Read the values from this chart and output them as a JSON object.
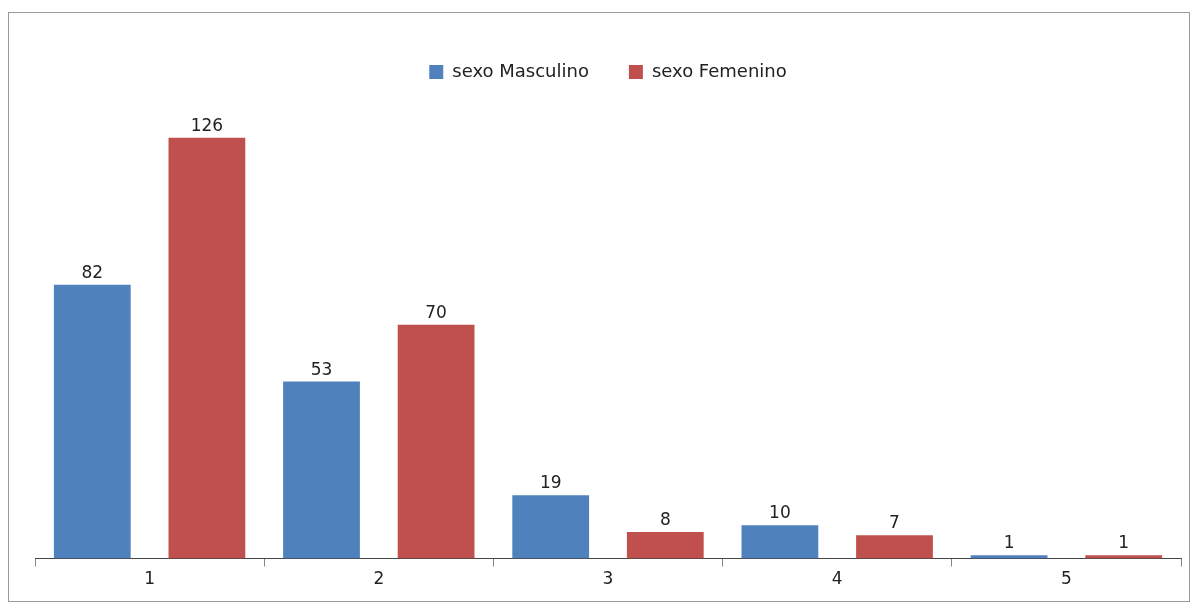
{
  "chart_data": {
    "type": "bar",
    "categories": [
      "1",
      "2",
      "3",
      "4",
      "5"
    ],
    "series": [
      {
        "name": "sexo Masculino",
        "color": "#4f81bd",
        "values": [
          82,
          53,
          19,
          10,
          1
        ]
      },
      {
        "name": "sexo Femenino",
        "color": "#c0504d",
        "values": [
          126,
          70,
          8,
          7,
          1
        ]
      }
    ],
    "data_labels": true,
    "legend": "top",
    "grid": false
  }
}
